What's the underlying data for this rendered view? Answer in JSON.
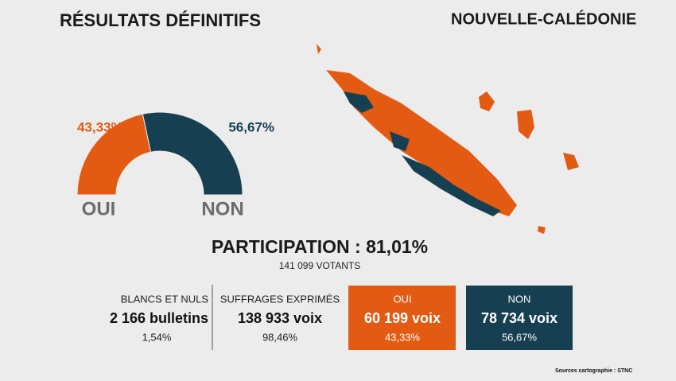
{
  "title": "RÉSULTATS DÉFINITIFS",
  "region": "NOUVELLE-CALÉDONIE",
  "chart_data": {
    "type": "half-donut",
    "categories": [
      "OUI",
      "NON"
    ],
    "values": [
      43.33,
      56.67
    ],
    "value_labels": [
      "43,33%",
      "56,67%"
    ],
    "colors": [
      "#e35b12",
      "#163f52"
    ]
  },
  "participation": {
    "headline": "PARTICIPATION : 81,01%",
    "voters": "141 099 VOTANTS"
  },
  "stats": [
    {
      "label": "BLANCS ET NULS",
      "count": "2 166 bulletins",
      "pct": "1,54%"
    },
    {
      "label": "SUFFRAGES EXPRIMÉS",
      "count": "138 933 voix",
      "pct": "98,46%"
    },
    {
      "label": "OUI",
      "count": "60 199 voix",
      "pct": "43,33%",
      "color": "#e35b12"
    },
    {
      "label": "NON",
      "count": "78 734 voix",
      "pct": "56,67%",
      "color": "#163f52"
    }
  ],
  "source": "Sources cartographie : STNC"
}
